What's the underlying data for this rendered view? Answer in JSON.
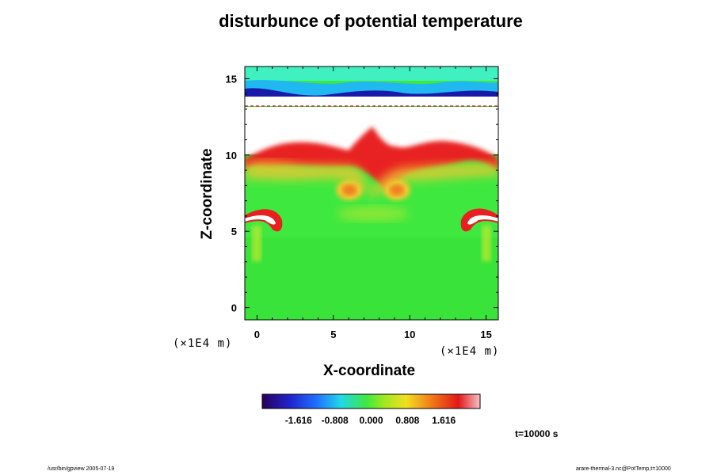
{
  "chart_data": {
    "type": "heatmap",
    "title": "disturbunce of potential temperature",
    "xlabel": "X-coordinate",
    "ylabel": "Z-coordinate",
    "x_unit_label": "(×1E4 m)",
    "y_unit_label": "(×1E4 m)",
    "xlim": [
      -0.8,
      15.8
    ],
    "ylim": [
      -0.8,
      15.8
    ],
    "x_ticks": [
      0,
      5,
      10,
      15
    ],
    "y_ticks": [
      0,
      5,
      10,
      15
    ],
    "colorbar": {
      "ticks": [
        "-1.616",
        "-0.808",
        "0.000",
        "0.808",
        "1.616"
      ],
      "range": [
        -2.424,
        2.424
      ]
    },
    "time_label": "t=10000 s",
    "features": [
      {
        "name": "upper cold layer",
        "x": [
          -0.8,
          15.8
        ],
        "z": [
          13.3,
          15.2
        ],
        "value": -1.4
      },
      {
        "name": "warm band",
        "z": [
          9.5,
          11.5
        ],
        "value": 1.6
      },
      {
        "name": "warm eddy left",
        "x": 5.7,
        "z": 8.0,
        "value": 0.9
      },
      {
        "name": "warm eddy right",
        "x": 9.7,
        "z": 8.0,
        "value": 0.9
      },
      {
        "name": "mushroom left",
        "x": 0.6,
        "z": 6.0,
        "value": 2.4
      },
      {
        "name": "mushroom right",
        "x": 14.8,
        "z": 6.0,
        "value": 2.4
      }
    ]
  },
  "footer": {
    "left": "/usr/bin/gpview 2005-07-19",
    "right": "arare-thermal-3.nc@PotTemp,t=10000"
  },
  "colors": {
    "cold": "#1a1aa8",
    "neutral": "#3fe83f",
    "warm": "#f0c830",
    "hot": "#e82020",
    "saturated": "#ffffff"
  }
}
